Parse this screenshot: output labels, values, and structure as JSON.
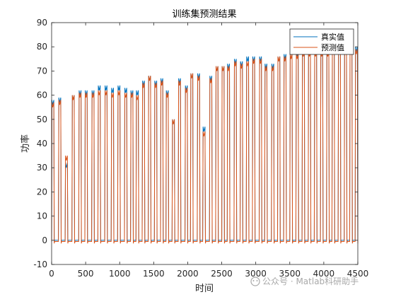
{
  "chart_data": {
    "type": "line",
    "title": "训练集预测结果",
    "xlabel": "时间",
    "ylabel": "功率",
    "xlim": [
      0,
      4500
    ],
    "ylim": [
      -10,
      90
    ],
    "x_ticks": [
      0,
      500,
      1000,
      1500,
      2000,
      2500,
      3000,
      3500,
      4000,
      4500
    ],
    "y_ticks": [
      -10,
      0,
      10,
      20,
      30,
      40,
      50,
      60,
      70,
      80,
      90
    ],
    "grid": false,
    "legend_position": "top-right",
    "colors": {
      "true": "#0072BD",
      "pred": "#D95319"
    },
    "series": [
      {
        "name": "真实值",
        "key": "true"
      },
      {
        "name": "预测值",
        "key": "pred"
      }
    ],
    "pulse_centers": [
      18,
      120,
      218,
      318,
      418,
      508,
      608,
      700,
      800,
      895,
      990,
      1090,
      1180,
      1260,
      1350,
      1440,
      1530,
      1620,
      1700,
      1790,
      1880,
      1980,
      2060,
      2160,
      2240,
      2340,
      2430,
      2520,
      2600,
      2700,
      2790,
      2880,
      2970,
      3070,
      3150,
      3250,
      3340,
      3430,
      3520,
      3610,
      3700,
      3790,
      3880,
      3970,
      4060,
      4140,
      4230,
      4320,
      4400,
      4480
    ],
    "pulse_peaks_true": [
      58,
      59,
      32,
      60,
      62,
      62,
      62,
      64,
      64,
      63,
      64,
      63,
      62,
      62,
      66,
      68,
      66,
      67,
      62,
      50,
      67,
      64,
      69,
      69,
      47,
      68,
      72,
      72,
      73,
      75,
      74,
      76,
      76,
      76,
      73,
      73,
      76,
      77,
      77,
      78,
      78,
      79,
      79,
      79,
      79,
      80,
      80,
      80,
      80,
      80
    ],
    "pulse_peaks_pred": [
      57,
      58,
      35,
      60,
      61,
      61,
      61,
      62,
      62,
      61,
      62,
      61,
      61,
      60,
      65,
      68,
      65,
      66,
      61,
      50,
      66,
      63,
      69,
      68,
      45,
      67,
      72,
      72,
      72,
      74,
      73,
      74,
      75,
      75,
      72,
      72,
      76,
      76,
      77,
      77,
      78,
      78,
      78,
      78,
      78,
      79,
      79,
      79,
      79,
      79
    ],
    "baseline_true": 0,
    "baseline_pred": -0.5
  },
  "watermark": {
    "text": "公众号 · Matlab科研助手"
  }
}
